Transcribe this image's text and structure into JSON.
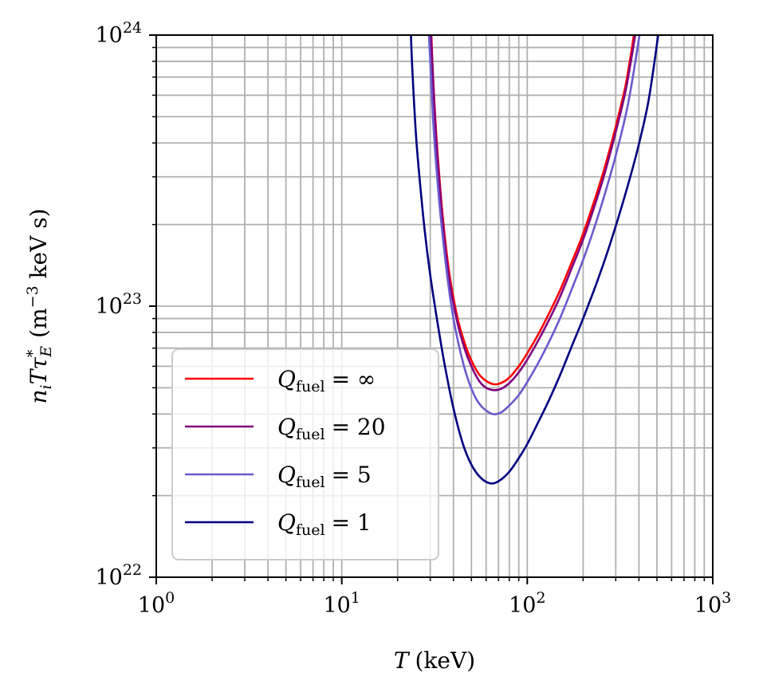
{
  "chart_data": {
    "type": "line",
    "title": "",
    "xscale": "log",
    "yscale": "log",
    "xlim": [
      1,
      1000
    ],
    "ylim": [
      1e+22,
      1e+24
    ],
    "grid": true,
    "legend_position": "lower-left",
    "xlabel": {
      "var": "T",
      "unit": "(keV)"
    },
    "ylabel": {
      "var": "n",
      "var_sub": "i",
      "var2": "T",
      "var3": "τ",
      "var3_sup": "*",
      "var3_sub": "E",
      "unit_open": "(m",
      "unit_exp": "−3",
      "unit_close": " keV s)"
    },
    "x_ticks": [
      {
        "value": 1,
        "base": "10",
        "exp": "0"
      },
      {
        "value": 10,
        "base": "10",
        "exp": "1"
      },
      {
        "value": 100,
        "base": "10",
        "exp": "2"
      },
      {
        "value": 1000,
        "base": "10",
        "exp": "3"
      }
    ],
    "y_ticks": [
      {
        "value": 1e+22,
        "base": "10",
        "exp": "22"
      },
      {
        "value": 1e+23,
        "base": "10",
        "exp": "23"
      },
      {
        "value": 1e+24,
        "base": "10",
        "exp": "24"
      }
    ],
    "series": [
      {
        "name": "Q_fuel = ∞",
        "label_var": "Q",
        "label_sub": "fuel",
        "label_eq": "= ∞",
        "color": "#ff0000",
        "x": [
          30.4,
          31,
          32,
          33,
          35,
          38,
          42,
          46,
          50,
          55,
          60,
          66,
          72,
          80,
          90,
          100,
          115,
          130,
          150,
          175,
          200,
          230,
          260,
          300,
          340,
          376
        ],
        "y": [
          1e+24,
          7.2e+23,
          4.8e+23,
          3.5e+23,
          2.15e+23,
          1.32e+23,
          9.1e+22,
          7.3e+22,
          6.3e+22,
          5.6e+22,
          5.3e+22,
          5.15e+22,
          5.2e+22,
          5.45e+22,
          6e+22,
          6.7e+22,
          7.9e+22,
          9.3e+22,
          1.14e+23,
          1.47e+23,
          1.85e+23,
          2.45e+23,
          3.2e+23,
          4.6e+23,
          6.6e+23,
          1e+24
        ]
      },
      {
        "name": "Q_fuel = 20",
        "label_var": "Q",
        "label_sub": "fuel",
        "label_eq": "= 20",
        "color": "#800080",
        "x": [
          30.3,
          31,
          32,
          33,
          35,
          38,
          42,
          46,
          50,
          55,
          60,
          66,
          72,
          80,
          90,
          100,
          115,
          130,
          150,
          175,
          200,
          230,
          260,
          300,
          340,
          382
        ],
        "y": [
          1e+24,
          7e+23,
          4.6e+23,
          3.35e+23,
          2.05e+23,
          1.25e+23,
          8.7e+22,
          6.95e+22,
          6e+22,
          5.3e+22,
          5e+22,
          4.9e+22,
          4.95e+22,
          5.2e+22,
          5.7e+22,
          6.35e+22,
          7.5e+22,
          8.8e+22,
          1.08e+23,
          1.4e+23,
          1.76e+23,
          2.33e+23,
          3.05e+23,
          4.4e+23,
          6.3e+23,
          1e+24
        ]
      },
      {
        "name": "Q_fuel = 5",
        "label_var": "Q",
        "label_sub": "fuel",
        "label_eq": "= 5",
        "color": "#6a5acd",
        "x": [
          29.5,
          30,
          31,
          32,
          34,
          37,
          40,
          44,
          48,
          53,
          58,
          65,
          72,
          80,
          90,
          100,
          115,
          130,
          150,
          175,
          200,
          230,
          260,
          300,
          350,
          403
        ],
        "y": [
          1e+24,
          8e+23,
          5e+23,
          3.6e+23,
          2.2e+23,
          1.3e+23,
          9e+22,
          6.6e+22,
          5.35e+22,
          4.55e+22,
          4.2e+22,
          4e+22,
          4.05e+22,
          4.3e+22,
          4.7e+22,
          5.25e+22,
          6.2e+22,
          7.3e+22,
          9e+22,
          1.17e+23,
          1.48e+23,
          1.95e+23,
          2.55e+23,
          3.6e+23,
          5.6e+23,
          1e+24
        ]
      },
      {
        "name": "Q_fuel = 1",
        "label_var": "Q",
        "label_sub": "fuel",
        "label_eq": "= 1",
        "color": "#000080",
        "x": [
          23.6,
          24,
          25,
          26,
          28,
          30,
          33,
          36,
          40,
          45,
          50,
          56,
          63,
          70,
          80,
          90,
          100,
          115,
          130,
          150,
          175,
          200,
          240,
          280,
          330,
          390,
          450,
          508
        ],
        "y": [
          1e+24,
          7.5e+23,
          4.5e+23,
          3.2e+23,
          1.9e+23,
          1.3e+23,
          8.5e+22,
          6e+22,
          4.2e+22,
          3.1e+22,
          2.6e+22,
          2.33e+22,
          2.22e+22,
          2.26e+22,
          2.45e+22,
          2.75e+22,
          3.1e+22,
          3.75e+22,
          4.45e+22,
          5.55e+22,
          7.2e+22,
          9e+22,
          1.25e+23,
          1.7e+23,
          2.45e+23,
          3.7e+23,
          5.7e+23,
          1e+24
        ]
      }
    ]
  }
}
